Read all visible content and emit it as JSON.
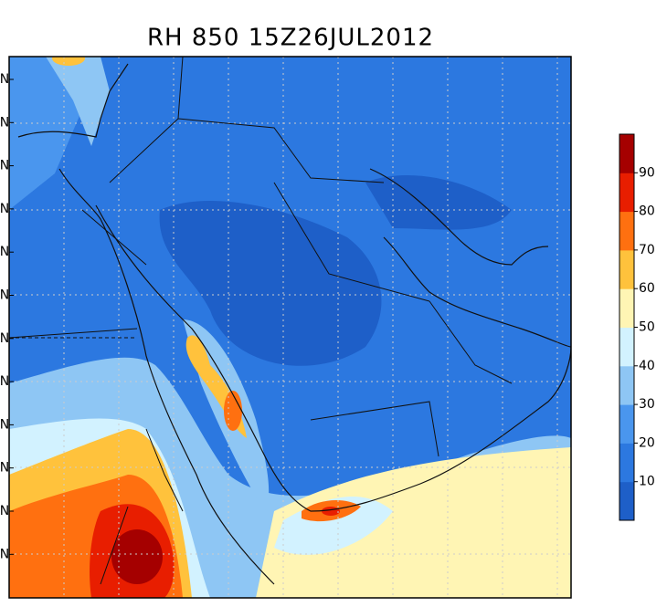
{
  "title": "RH 850  15Z26JUL2012",
  "colorbar": {
    "labels": [
      10,
      20,
      30,
      40,
      50,
      60,
      70,
      80,
      90
    ],
    "colors": [
      "#1e5fc8",
      "#2c78e0",
      "#4a96ee",
      "#8ec6f4",
      "#d2f2ff",
      "#fff5b4",
      "#ffc23c",
      "#ff7010",
      "#e81e00",
      "#a50000"
    ]
  },
  "lat_labels": [
    "N",
    "N",
    "N",
    "N",
    "N",
    "N",
    "N",
    "N",
    "N",
    "N",
    "N",
    "N"
  ]
}
